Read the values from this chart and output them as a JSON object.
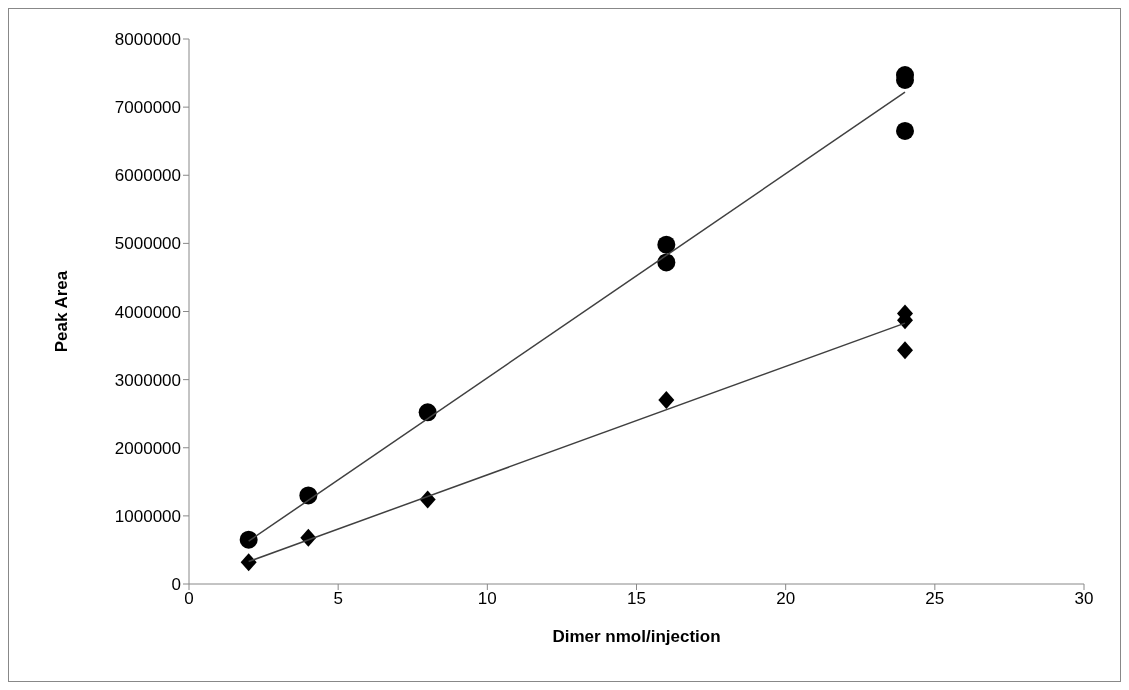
{
  "chart_data": {
    "type": "scatter",
    "xlabel": "Dimer nmol/injection",
    "ylabel": "Peak Area",
    "xlim": [
      0,
      30
    ],
    "xticks": [
      0,
      5,
      10,
      15,
      20,
      25,
      30
    ],
    "ylim": [
      0,
      8000000
    ],
    "yticks": [
      0,
      1000000,
      2000000,
      3000000,
      4000000,
      5000000,
      6000000,
      7000000,
      8000000
    ],
    "grid": false,
    "legend": false,
    "series": [
      {
        "marker": "circle",
        "color": "#000000",
        "x": [
          2,
          4,
          8,
          16,
          16,
          24,
          24,
          24
        ],
        "values": [
          650000,
          1300000,
          2520000,
          4980000,
          4720000,
          7470000,
          7400000,
          6650000
        ]
      },
      {
        "marker": "diamond",
        "color": "#000000",
        "x": [
          2,
          4,
          8,
          16,
          24,
          24,
          24
        ],
        "values": [
          320000,
          680000,
          1240000,
          2700000,
          3970000,
          3870000,
          3430000
        ]
      },
      {
        "type": "line",
        "marker": "none",
        "line_style": "solid",
        "color": "#404040",
        "x": [
          2,
          24
        ],
        "values": [
          630000,
          7220000
        ]
      },
      {
        "type": "line",
        "marker": "none",
        "line_style": "solid",
        "color": "#404040",
        "x": [
          2,
          24
        ],
        "values": [
          330000,
          3830000
        ]
      }
    ]
  }
}
